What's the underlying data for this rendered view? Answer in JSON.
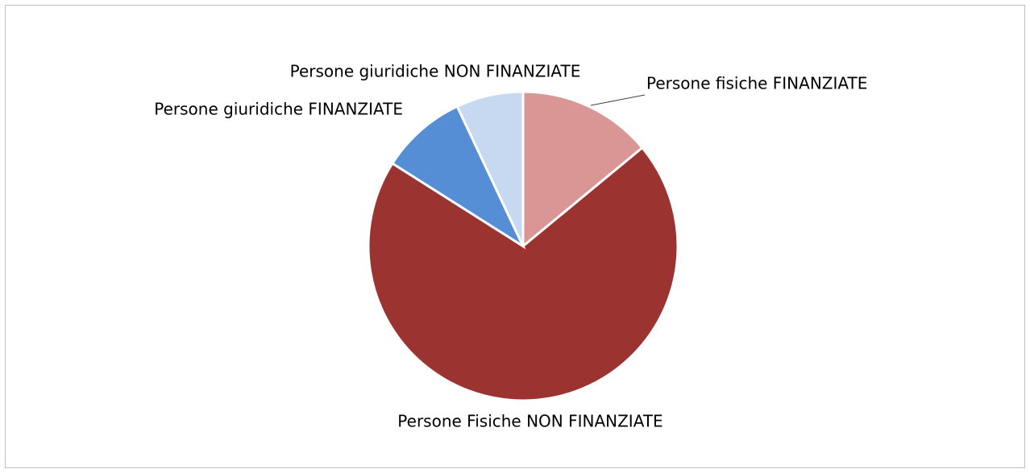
{
  "chart_data": {
    "type": "pie",
    "categories": [
      "Persone fisiche FINANZIATE",
      "Persone Fisiche NON FINANZIATE",
      "Persone giuridiche FINANZIATE",
      "Persone giuridiche NON FINANZIATE"
    ],
    "values": [
      14,
      70,
      9,
      7
    ],
    "colors": [
      "#d99694",
      "#9b3330",
      "#558ed5",
      "#c6d9f1"
    ]
  }
}
